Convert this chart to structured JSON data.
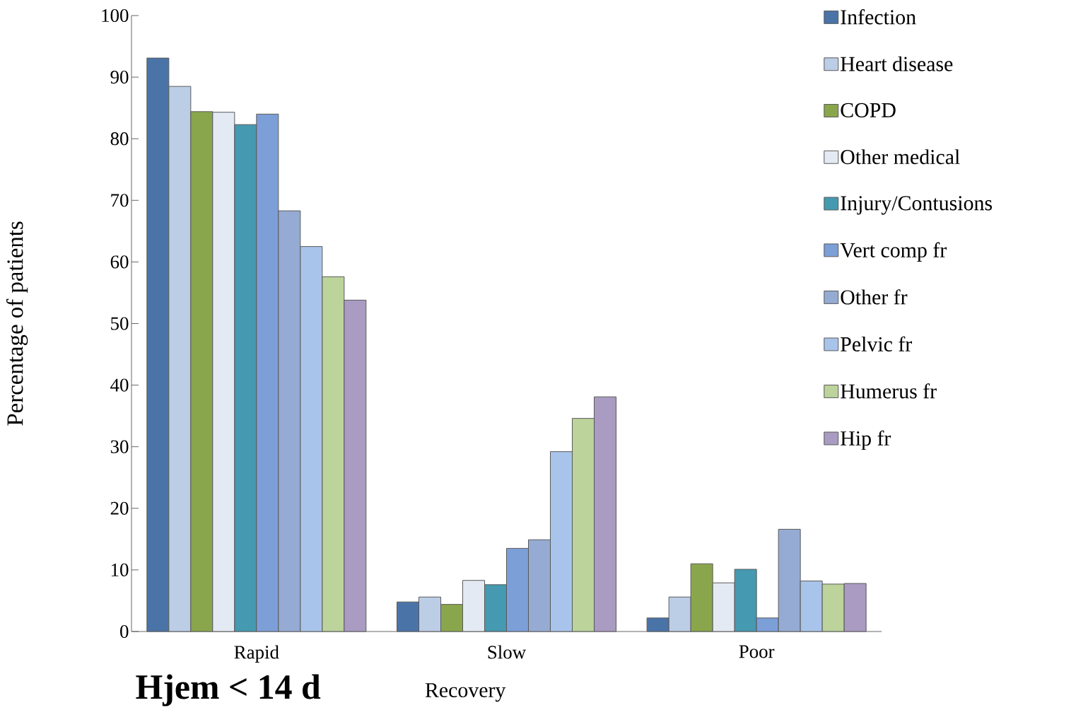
{
  "chart_data": {
    "type": "bar",
    "xlabel": "Recovery",
    "ylabel": "Percentage of patients",
    "categories": [
      "Rapid",
      "Slow",
      "Poor"
    ],
    "series": [
      {
        "name": "Infection",
        "color": "#4a74a8",
        "values": [
          93.1,
          4.8,
          2.2
        ]
      },
      {
        "name": "Heart disease",
        "color": "#bccde6",
        "values": [
          88.5,
          5.6,
          5.6
        ]
      },
      {
        "name": "COPD",
        "color": "#8aa64c",
        "values": [
          84.4,
          4.4,
          11.0
        ]
      },
      {
        "name": "Other medical",
        "color": "#e3eaf4",
        "values": [
          84.3,
          8.3,
          7.9
        ]
      },
      {
        "name": "Injury/Contusions",
        "color": "#4599b0",
        "values": [
          82.3,
          7.6,
          10.1
        ]
      },
      {
        "name": "Vert comp fr",
        "color": "#7d9fd8",
        "values": [
          84.0,
          13.5,
          2.2
        ]
      },
      {
        "name": "Other fr",
        "color": "#95abd3",
        "values": [
          68.3,
          14.9,
          16.6
        ]
      },
      {
        "name": "Pelvic fr",
        "color": "#a9c4ea",
        "values": [
          62.5,
          29.2,
          8.2
        ]
      },
      {
        "name": "Humerus fr",
        "color": "#bcd39b",
        "values": [
          57.6,
          34.6,
          7.7
        ]
      },
      {
        "name": "Hip fr",
        "color": "#a99bc2",
        "values": [
          53.8,
          38.1,
          7.8
        ]
      }
    ],
    "ylim": [
      0,
      100
    ],
    "yticks": [
      0,
      10,
      20,
      30,
      40,
      50,
      60,
      70,
      80,
      90,
      100
    ],
    "grid": false,
    "legend": "right",
    "annotations": [
      "**Hjem < 14 d**"
    ]
  }
}
